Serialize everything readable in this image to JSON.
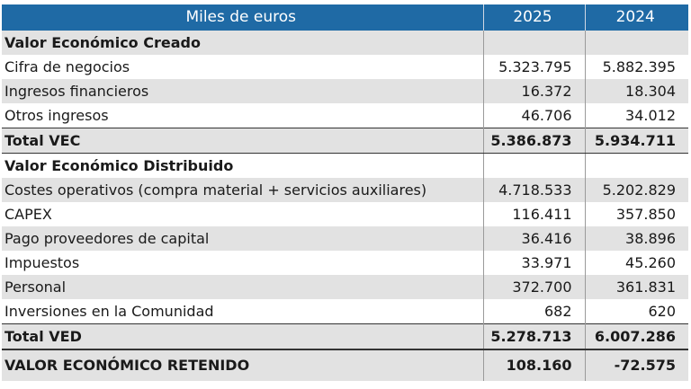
{
  "header": {
    "label": "Miles de euros",
    "year1": "2025",
    "year2": "2024"
  },
  "rows": [
    {
      "label": "Valor Económico Creado",
      "v1": "",
      "v2": ""
    },
    {
      "label": "Cifra de negocios",
      "v1": "5.323.795",
      "v2": "5.882.395"
    },
    {
      "label": "Ingresos financieros",
      "v1": "16.372",
      "v2": "18.304"
    },
    {
      "label": "Otros ingresos",
      "v1": "46.706",
      "v2": "34.012"
    },
    {
      "label": "Total VEC",
      "v1": "5.386.873",
      "v2": "5.934.711"
    },
    {
      "label": "Valor Económico Distribuido",
      "v1": "",
      "v2": ""
    },
    {
      "label": "Costes operativos (compra material + servicios auxiliares)",
      "v1": "4.718.533",
      "v2": "5.202.829"
    },
    {
      "label": "CAPEX",
      "v1": "116.411",
      "v2": "357.850"
    },
    {
      "label": "Pago proveedores de capital",
      "v1": "36.416",
      "v2": "38.896"
    },
    {
      "label": "Impuestos",
      "v1": "33.971",
      "v2": "45.260"
    },
    {
      "label": "Personal",
      "v1": "372.700",
      "v2": "361.831"
    },
    {
      "label": "Inversiones en la Comunidad",
      "v1": "682",
      "v2": "620"
    },
    {
      "label": "Total VED",
      "v1": "5.278.713",
      "v2": "6.007.286"
    },
    {
      "label": "VALOR ECONÓMICO RETENIDO",
      "v1": "108.160",
      "v2": "-72.575"
    }
  ],
  "colors": {
    "header_bg": "#1f6aa5",
    "shade_bg": "#e2e2e2"
  }
}
